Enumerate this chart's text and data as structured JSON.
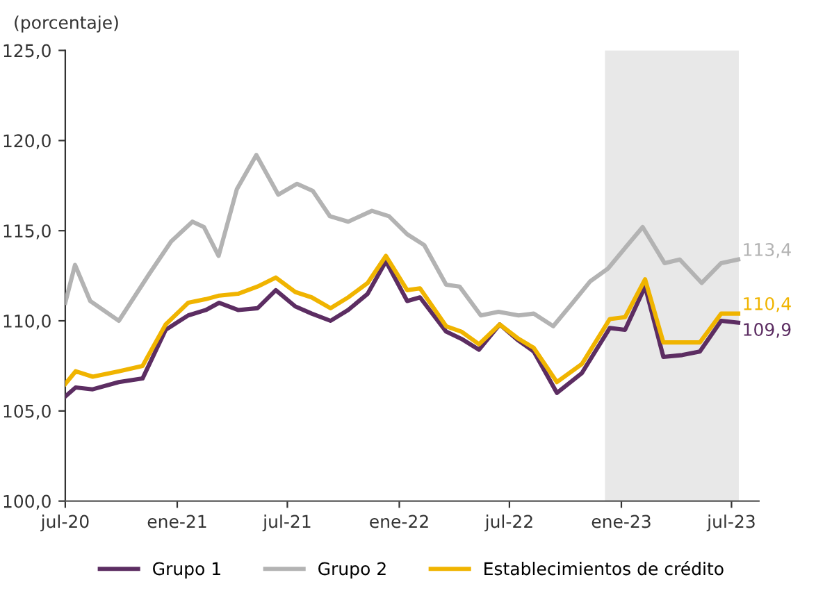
{
  "chart_data": {
    "type": "line",
    "ylabel": "(porcentaje)",
    "xlim": [
      "2020-07-01",
      "2023-08-15"
    ],
    "ylim": [
      100,
      125
    ],
    "yticks": [
      {
        "value": 100,
        "label": "100,0"
      },
      {
        "value": 105,
        "label": "105,0"
      },
      {
        "value": 110,
        "label": "110,0"
      },
      {
        "value": 115,
        "label": "115,0"
      },
      {
        "value": 120,
        "label": "120,0"
      },
      {
        "value": 125,
        "label": "125,0"
      }
    ],
    "xticks": [
      {
        "value": "2020-07-01",
        "label": "jul-20"
      },
      {
        "value": "2021-01-01",
        "label": "ene-21"
      },
      {
        "value": "2021-07-01",
        "label": "jul-21"
      },
      {
        "value": "2022-01-01",
        "label": "ene-22"
      },
      {
        "value": "2022-07-01",
        "label": "jul-22"
      },
      {
        "value": "2023-01-01",
        "label": "ene-23"
      },
      {
        "value": "2023-07-01",
        "label": "jul-23"
      }
    ],
    "bands": [
      {
        "axis": "x",
        "from": "2022-12-05",
        "to": "2023-07-13",
        "color": "#e8e8e8"
      }
    ],
    "grid": false,
    "legend": "bottom",
    "marker": "none",
    "line_style": "solid",
    "series": [
      {
        "name": "Grupo 1",
        "color": "#5c2d62",
        "x": [
          "2020-07-01",
          "2020-07-18",
          "2020-08-15",
          "2020-09-27",
          "2020-11-05",
          "2020-12-13",
          "2021-01-19",
          "2021-02-17",
          "2021-03-11",
          "2021-04-11",
          "2021-05-13",
          "2021-06-12",
          "2021-07-14",
          "2021-08-10",
          "2021-09-10",
          "2021-10-09",
          "2021-11-10",
          "2021-12-10",
          "2022-01-14",
          "2022-02-04",
          "2022-03-19",
          "2022-04-13",
          "2022-05-12",
          "2022-06-15",
          "2022-07-16",
          "2022-08-10",
          "2022-09-17",
          "2022-10-28",
          "2022-12-13",
          "2023-01-07",
          "2023-02-09",
          "2023-03-11",
          "2023-04-11",
          "2023-05-10",
          "2023-06-14",
          "2023-07-12"
        ],
        "values": [
          105.8,
          106.3,
          106.2,
          106.6,
          106.8,
          109.5,
          110.3,
          110.6,
          111.0,
          110.6,
          110.7,
          111.7,
          110.8,
          110.4,
          110.0,
          110.6,
          111.5,
          113.3,
          111.1,
          111.3,
          109.4,
          109.0,
          108.4,
          109.8,
          108.9,
          108.3,
          106.0,
          107.1,
          109.6,
          109.5,
          111.9,
          108.0,
          108.1,
          108.3,
          110.0,
          109.9
        ],
        "value_labels": [
          null,
          null,
          null,
          null,
          null,
          null,
          null,
          null,
          null,
          null,
          null,
          null,
          null,
          null,
          null,
          null,
          null,
          null,
          null,
          null,
          null,
          null,
          null,
          null,
          null,
          null,
          null,
          null,
          null,
          null,
          null,
          null,
          null,
          null,
          null,
          "109,9"
        ]
      },
      {
        "name": "Grupo 2",
        "color": "#b3b3b3",
        "x": [
          "2020-07-01",
          "2020-07-17",
          "2020-08-11",
          "2020-09-27",
          "2020-11-16",
          "2020-12-22",
          "2021-01-26",
          "2021-02-14",
          "2021-03-10",
          "2021-04-09",
          "2021-05-11",
          "2021-06-16",
          "2021-07-17",
          "2021-08-12",
          "2021-09-09",
          "2021-10-09",
          "2021-11-17",
          "2021-12-15",
          "2022-01-14",
          "2022-02-11",
          "2022-03-19",
          "2022-04-10",
          "2022-05-15",
          "2022-06-13",
          "2022-07-16",
          "2022-08-10",
          "2022-09-11",
          "2022-10-13",
          "2022-11-11",
          "2022-12-10",
          "2023-01-11",
          "2023-02-05",
          "2023-03-13",
          "2023-04-07",
          "2023-05-13",
          "2023-06-14",
          "2023-07-12"
        ],
        "values": [
          111.0,
          113.1,
          111.1,
          110.0,
          112.6,
          114.4,
          115.5,
          115.2,
          113.6,
          117.3,
          119.2,
          117.0,
          117.6,
          117.2,
          115.8,
          115.5,
          116.1,
          115.8,
          114.8,
          114.2,
          112.0,
          111.9,
          110.3,
          110.5,
          110.3,
          110.4,
          109.7,
          111.0,
          112.2,
          112.9,
          114.2,
          115.2,
          113.2,
          113.4,
          112.1,
          113.2,
          113.4
        ],
        "value_labels": [
          null,
          null,
          null,
          null,
          null,
          null,
          null,
          null,
          null,
          null,
          null,
          null,
          null,
          null,
          null,
          null,
          null,
          null,
          null,
          null,
          null,
          null,
          null,
          null,
          null,
          null,
          null,
          null,
          null,
          null,
          null,
          null,
          null,
          null,
          null,
          null,
          "113,4"
        ]
      },
      {
        "name": "Establecimientos de crédito",
        "color": "#f0b400",
        "x": [
          "2020-07-01",
          "2020-07-18",
          "2020-08-15",
          "2020-09-27",
          "2020-11-05",
          "2020-12-13",
          "2021-01-19",
          "2021-02-17",
          "2021-03-11",
          "2021-04-11",
          "2021-05-13",
          "2021-06-12",
          "2021-07-14",
          "2021-08-10",
          "2021-09-10",
          "2021-10-09",
          "2021-11-10",
          "2021-12-10",
          "2022-01-14",
          "2022-02-04",
          "2022-03-19",
          "2022-04-13",
          "2022-05-12",
          "2022-06-15",
          "2022-07-16",
          "2022-08-10",
          "2022-09-17",
          "2022-10-28",
          "2022-12-13",
          "2023-01-07",
          "2023-02-09",
          "2023-03-11",
          "2023-04-11",
          "2023-05-10",
          "2023-06-14",
          "2023-07-12"
        ],
        "values": [
          106.5,
          107.2,
          106.9,
          107.2,
          107.5,
          109.8,
          111.0,
          111.2,
          111.4,
          111.5,
          111.9,
          112.4,
          111.6,
          111.3,
          110.7,
          111.3,
          112.1,
          113.6,
          111.7,
          111.8,
          109.7,
          109.4,
          108.7,
          109.8,
          109.0,
          108.5,
          106.6,
          107.6,
          110.1,
          110.2,
          112.3,
          108.8,
          108.8,
          108.8,
          110.4,
          110.4
        ],
        "value_labels": [
          null,
          null,
          null,
          null,
          null,
          null,
          null,
          null,
          null,
          null,
          null,
          null,
          null,
          null,
          null,
          null,
          null,
          null,
          null,
          null,
          null,
          null,
          null,
          null,
          null,
          null,
          null,
          null,
          null,
          null,
          null,
          null,
          null,
          null,
          null,
          "110,4"
        ]
      }
    ]
  }
}
